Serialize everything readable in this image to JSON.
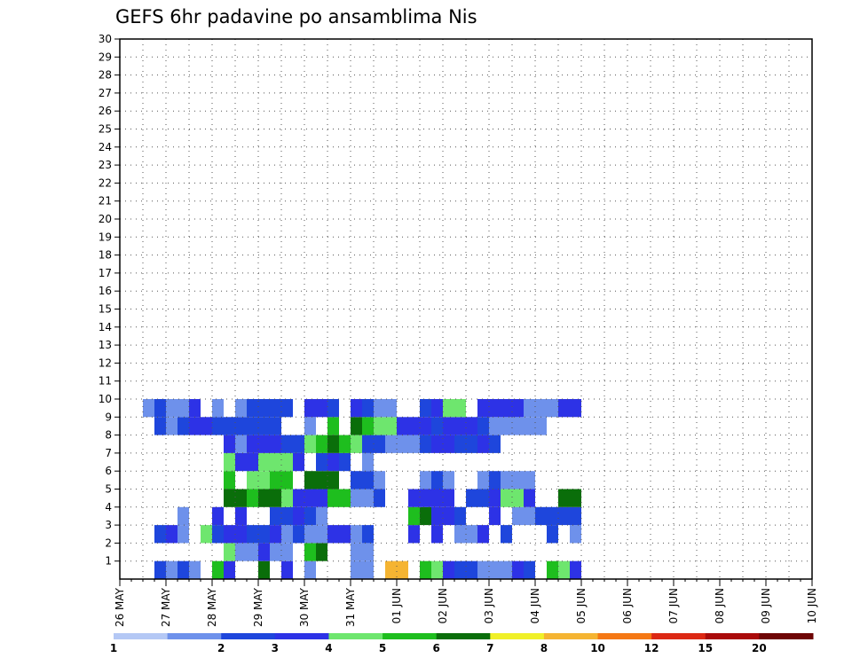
{
  "chart_data": {
    "type": "heatmap",
    "title": "GEFS 6hr padavine po ansamblima Nis",
    "xlabel": "",
    "ylabel": "",
    "x_tick_labels": [
      "26 MAY",
      "27 MAY",
      "28 MAY",
      "29 MAY",
      "30 MAY",
      "31 MAY",
      "01 JUN",
      "02 JUN",
      "03 JUN",
      "04 JUN",
      "05 JUN",
      "06 JUN",
      "07 JUN",
      "08 JUN",
      "09 JUN",
      "10 JUN"
    ],
    "x_steps_per_day": 4,
    "y_range": [
      0,
      30
    ],
    "y_ticks": [
      1,
      2,
      3,
      4,
      5,
      6,
      7,
      8,
      9,
      10,
      11,
      12,
      13,
      14,
      15,
      16,
      17,
      18,
      19,
      20,
      21,
      22,
      23,
      24,
      25,
      26,
      27,
      28,
      29,
      30
    ],
    "grid": true,
    "colorbar": {
      "position": "bottom",
      "labels": [
        "1",
        "2",
        "3",
        "4",
        "5",
        "6",
        "7",
        "8",
        "10",
        "12",
        "15",
        "20"
      ],
      "colors": [
        "#b4c8f5",
        "#6e91eb",
        "#1e46dc",
        "#2d32e6",
        "#6ee66e",
        "#1ebe1e",
        "#0a6e0a",
        "#f0f028",
        "#f5b432",
        "#f57814",
        "#dc2814",
        "#aa0a0a",
        "#6e0505"
      ]
    },
    "cells": [
      [
        3,
        0,
        2
      ],
      [
        4,
        0,
        1
      ],
      [
        5,
        0,
        2
      ],
      [
        6,
        0,
        1
      ],
      [
        8,
        0,
        5
      ],
      [
        9,
        0,
        3
      ],
      [
        12,
        0,
        6
      ],
      [
        14,
        0,
        3
      ],
      [
        16,
        0,
        1
      ],
      [
        20,
        0,
        1
      ],
      [
        21,
        0,
        1
      ],
      [
        23,
        0,
        8
      ],
      [
        24,
        0,
        8
      ],
      [
        26,
        0,
        5
      ],
      [
        27,
        0,
        4
      ],
      [
        28,
        0,
        3
      ],
      [
        29,
        0,
        2
      ],
      [
        30,
        0,
        2
      ],
      [
        31,
        0,
        1
      ],
      [
        32,
        0,
        1
      ],
      [
        33,
        0,
        1
      ],
      [
        34,
        0,
        3
      ],
      [
        35,
        0,
        2
      ],
      [
        37,
        0,
        5
      ],
      [
        38,
        0,
        4
      ],
      [
        39,
        0,
        3
      ],
      [
        9,
        1,
        4
      ],
      [
        10,
        1,
        1
      ],
      [
        11,
        1,
        1
      ],
      [
        12,
        1,
        3
      ],
      [
        13,
        1,
        1
      ],
      [
        14,
        1,
        1
      ],
      [
        16,
        1,
        5
      ],
      [
        17,
        1,
        6
      ],
      [
        20,
        1,
        1
      ],
      [
        21,
        1,
        1
      ],
      [
        3,
        2,
        2
      ],
      [
        4,
        2,
        3
      ],
      [
        5,
        2,
        1
      ],
      [
        7,
        2,
        4
      ],
      [
        8,
        2,
        2
      ],
      [
        9,
        2,
        3
      ],
      [
        10,
        2,
        3
      ],
      [
        11,
        2,
        2
      ],
      [
        12,
        2,
        2
      ],
      [
        13,
        2,
        3
      ],
      [
        14,
        2,
        1
      ],
      [
        15,
        2,
        2
      ],
      [
        16,
        2,
        1
      ],
      [
        17,
        2,
        1
      ],
      [
        18,
        2,
        3
      ],
      [
        19,
        2,
        3
      ],
      [
        20,
        2,
        1
      ],
      [
        21,
        2,
        2
      ],
      [
        25,
        2,
        3
      ],
      [
        27,
        2,
        3
      ],
      [
        29,
        2,
        1
      ],
      [
        30,
        2,
        1
      ],
      [
        31,
        2,
        3
      ],
      [
        33,
        2,
        2
      ],
      [
        37,
        2,
        2
      ],
      [
        39,
        2,
        1
      ],
      [
        5,
        3,
        1
      ],
      [
        8,
        3,
        3
      ],
      [
        10,
        3,
        3
      ],
      [
        13,
        3,
        2
      ],
      [
        14,
        3,
        2
      ],
      [
        15,
        3,
        3
      ],
      [
        16,
        3,
        2
      ],
      [
        17,
        3,
        1
      ],
      [
        25,
        3,
        5
      ],
      [
        26,
        3,
        6
      ],
      [
        27,
        3,
        3
      ],
      [
        28,
        3,
        3
      ],
      [
        29,
        3,
        2
      ],
      [
        32,
        3,
        3
      ],
      [
        34,
        3,
        1
      ],
      [
        35,
        3,
        1
      ],
      [
        36,
        3,
        2
      ],
      [
        37,
        3,
        2
      ],
      [
        38,
        3,
        2
      ],
      [
        39,
        3,
        2
      ],
      [
        9,
        4,
        6
      ],
      [
        10,
        4,
        6
      ],
      [
        11,
        4,
        5
      ],
      [
        12,
        4,
        6
      ],
      [
        13,
        4,
        6
      ],
      [
        14,
        4,
        4
      ],
      [
        15,
        4,
        3
      ],
      [
        16,
        4,
        3
      ],
      [
        17,
        4,
        3
      ],
      [
        18,
        4,
        5
      ],
      [
        19,
        4,
        5
      ],
      [
        20,
        4,
        1
      ],
      [
        21,
        4,
        1
      ],
      [
        22,
        4,
        2
      ],
      [
        25,
        4,
        3
      ],
      [
        26,
        4,
        3
      ],
      [
        27,
        4,
        3
      ],
      [
        28,
        4,
        3
      ],
      [
        30,
        4,
        2
      ],
      [
        31,
        4,
        2
      ],
      [
        32,
        4,
        3
      ],
      [
        33,
        4,
        4
      ],
      [
        34,
        4,
        4
      ],
      [
        35,
        4,
        3
      ],
      [
        38,
        4,
        6
      ],
      [
        39,
        4,
        6
      ],
      [
        9,
        5,
        5
      ],
      [
        11,
        5,
        4
      ],
      [
        12,
        5,
        4
      ],
      [
        13,
        5,
        5
      ],
      [
        14,
        5,
        5
      ],
      [
        16,
        5,
        6
      ],
      [
        17,
        5,
        6
      ],
      [
        18,
        5,
        6
      ],
      [
        20,
        5,
        2
      ],
      [
        21,
        5,
        2
      ],
      [
        22,
        5,
        1
      ],
      [
        26,
        5,
        1
      ],
      [
        27,
        5,
        2
      ],
      [
        28,
        5,
        1
      ],
      [
        31,
        5,
        1
      ],
      [
        32,
        5,
        2
      ],
      [
        33,
        5,
        1
      ],
      [
        34,
        5,
        1
      ],
      [
        35,
        5,
        1
      ],
      [
        9,
        6,
        4
      ],
      [
        10,
        6,
        3
      ],
      [
        11,
        6,
        3
      ],
      [
        12,
        6,
        4
      ],
      [
        13,
        6,
        4
      ],
      [
        14,
        6,
        4
      ],
      [
        15,
        6,
        3
      ],
      [
        17,
        6,
        2
      ],
      [
        18,
        6,
        3
      ],
      [
        19,
        6,
        2
      ],
      [
        21,
        6,
        1
      ],
      [
        9,
        7,
        3
      ],
      [
        10,
        7,
        1
      ],
      [
        11,
        7,
        3
      ],
      [
        12,
        7,
        3
      ],
      [
        13,
        7,
        3
      ],
      [
        14,
        7,
        2
      ],
      [
        15,
        7,
        2
      ],
      [
        16,
        7,
        4
      ],
      [
        17,
        7,
        5
      ],
      [
        18,
        7,
        6
      ],
      [
        19,
        7,
        5
      ],
      [
        20,
        7,
        4
      ],
      [
        21,
        7,
        2
      ],
      [
        22,
        7,
        2
      ],
      [
        23,
        7,
        1
      ],
      [
        24,
        7,
        1
      ],
      [
        25,
        7,
        1
      ],
      [
        26,
        7,
        2
      ],
      [
        27,
        7,
        3
      ],
      [
        28,
        7,
        3
      ],
      [
        29,
        7,
        2
      ],
      [
        30,
        7,
        2
      ],
      [
        31,
        7,
        3
      ],
      [
        32,
        7,
        2
      ],
      [
        3,
        8,
        2
      ],
      [
        4,
        8,
        1
      ],
      [
        5,
        8,
        2
      ],
      [
        6,
        8,
        3
      ],
      [
        7,
        8,
        3
      ],
      [
        8,
        8,
        2
      ],
      [
        9,
        8,
        2
      ],
      [
        10,
        8,
        2
      ],
      [
        11,
        8,
        2
      ],
      [
        12,
        8,
        2
      ],
      [
        13,
        8,
        2
      ],
      [
        16,
        8,
        1
      ],
      [
        18,
        8,
        5
      ],
      [
        20,
        8,
        6
      ],
      [
        21,
        8,
        5
      ],
      [
        22,
        8,
        4
      ],
      [
        23,
        8,
        4
      ],
      [
        24,
        8,
        3
      ],
      [
        25,
        8,
        3
      ],
      [
        26,
        8,
        3
      ],
      [
        27,
        8,
        2
      ],
      [
        28,
        8,
        3
      ],
      [
        29,
        8,
        3
      ],
      [
        30,
        8,
        3
      ],
      [
        31,
        8,
        2
      ],
      [
        32,
        8,
        1
      ],
      [
        33,
        8,
        1
      ],
      [
        34,
        8,
        1
      ],
      [
        35,
        8,
        1
      ],
      [
        36,
        8,
        1
      ],
      [
        2,
        9,
        1
      ],
      [
        3,
        9,
        2
      ],
      [
        4,
        9,
        1
      ],
      [
        5,
        9,
        1
      ],
      [
        6,
        9,
        3
      ],
      [
        8,
        9,
        1
      ],
      [
        10,
        9,
        1
      ],
      [
        11,
        9,
        2
      ],
      [
        12,
        9,
        2
      ],
      [
        13,
        9,
        2
      ],
      [
        14,
        9,
        2
      ],
      [
        16,
        9,
        3
      ],
      [
        17,
        9,
        3
      ],
      [
        18,
        9,
        2
      ],
      [
        20,
        9,
        3
      ],
      [
        21,
        9,
        2
      ],
      [
        22,
        9,
        1
      ],
      [
        23,
        9,
        1
      ],
      [
        26,
        9,
        2
      ],
      [
        27,
        9,
        3
      ],
      [
        28,
        9,
        4
      ],
      [
        29,
        9,
        4
      ],
      [
        31,
        9,
        3
      ],
      [
        32,
        9,
        3
      ],
      [
        33,
        9,
        3
      ],
      [
        34,
        9,
        3
      ],
      [
        35,
        9,
        1
      ],
      [
        36,
        9,
        1
      ],
      [
        37,
        9,
        1
      ],
      [
        38,
        9,
        3
      ],
      [
        39,
        9,
        3
      ]
    ]
  }
}
